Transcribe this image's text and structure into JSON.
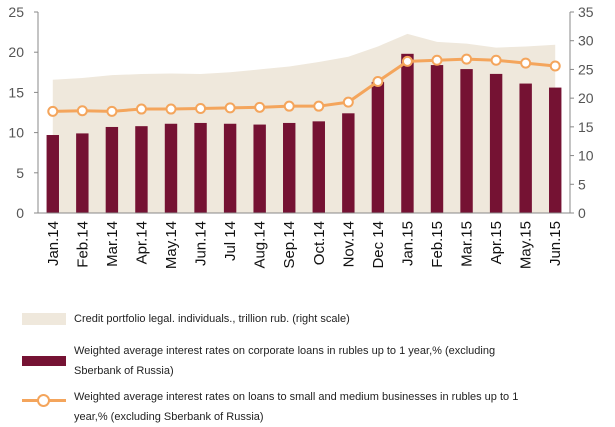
{
  "chart_data": {
    "type": "bar",
    "categories": [
      "Jan.14",
      "Feb.14",
      "Mar.14",
      "Apr.14",
      "May.14",
      "Jun.14",
      "Jul.14",
      "Aug.14",
      "Sep.14",
      "Oct.14",
      "Nov.14",
      "Dec.14",
      "Jan.15",
      "Feb.15",
      "Mar.15",
      "Apr.15",
      "May.15",
      "Jun.15"
    ],
    "x_tick_labels": [
      "Jan.14",
      "Feb.14",
      "Mar.14",
      "Apr.14",
      "May.14",
      "Jun.14",
      "Jul 14",
      "Aug.14",
      "Sep.14",
      "Oct.14",
      "Nov.14",
      "Dec 14",
      "Jan.15",
      "Feb.15",
      "Mar.15",
      "Apr.15",
      "May.15",
      "Jun.15"
    ],
    "y_left": {
      "lim": [
        0,
        25
      ],
      "ticks": [
        "0",
        "5",
        "10",
        "15",
        "20",
        "25"
      ]
    },
    "y_right": {
      "lim": [
        0,
        35
      ],
      "ticks": [
        "0",
        "5",
        "10",
        "15",
        "20",
        "25",
        "30",
        "35"
      ]
    },
    "grid": false,
    "legend_placement": "bottom",
    "series": [
      {
        "name": "Credit portfolio legal. individuals., trillion rub. (right scale)",
        "type": "area",
        "axis": "right",
        "color": "#efe8dc",
        "values": [
          23.2,
          23.5,
          24.0,
          24.2,
          24.3,
          24.2,
          24.5,
          25.0,
          25.5,
          26.3,
          27.2,
          29.0,
          31.2,
          29.8,
          29.5,
          28.8,
          29.0,
          29.3
        ]
      },
      {
        "name": "Weighted average interest rates on corporate loans in rubles up to 1 year,% (excluding Sberbank of Russia)",
        "type": "bar",
        "axis": "left",
        "color": "#751233",
        "values": [
          9.7,
          9.9,
          10.7,
          10.8,
          11.1,
          11.2,
          11.1,
          11.0,
          11.2,
          11.4,
          12.4,
          16.3,
          19.8,
          18.4,
          17.9,
          17.3,
          16.1,
          15.6
        ]
      },
      {
        "name": "Weighted average interest rates on loans to small and medium businesses in rubles up to 1 year,% (excluding Sberbank of Russia)",
        "type": "line",
        "axis": "right",
        "color": "#f4a55c",
        "values": [
          17.7,
          17.8,
          17.7,
          18.1,
          18.1,
          18.2,
          18.3,
          18.4,
          18.6,
          18.6,
          19.3,
          22.9,
          26.4,
          26.6,
          26.8,
          26.6,
          26.1,
          25.6
        ]
      }
    ]
  },
  "legend": [
    {
      "key": "area",
      "text": "Credit portfolio legal. individuals., trillion rub. (right scale)"
    },
    {
      "key": "bar",
      "text": "Weighted average interest rates on corporate loans in rubles up to 1 year,% (excluding Sberbank of Russia)"
    },
    {
      "key": "line",
      "text": "Weighted average interest rates on loans to small and medium businesses in rubles up to 1 year,% (excluding Sberbank of Russia)"
    }
  ]
}
